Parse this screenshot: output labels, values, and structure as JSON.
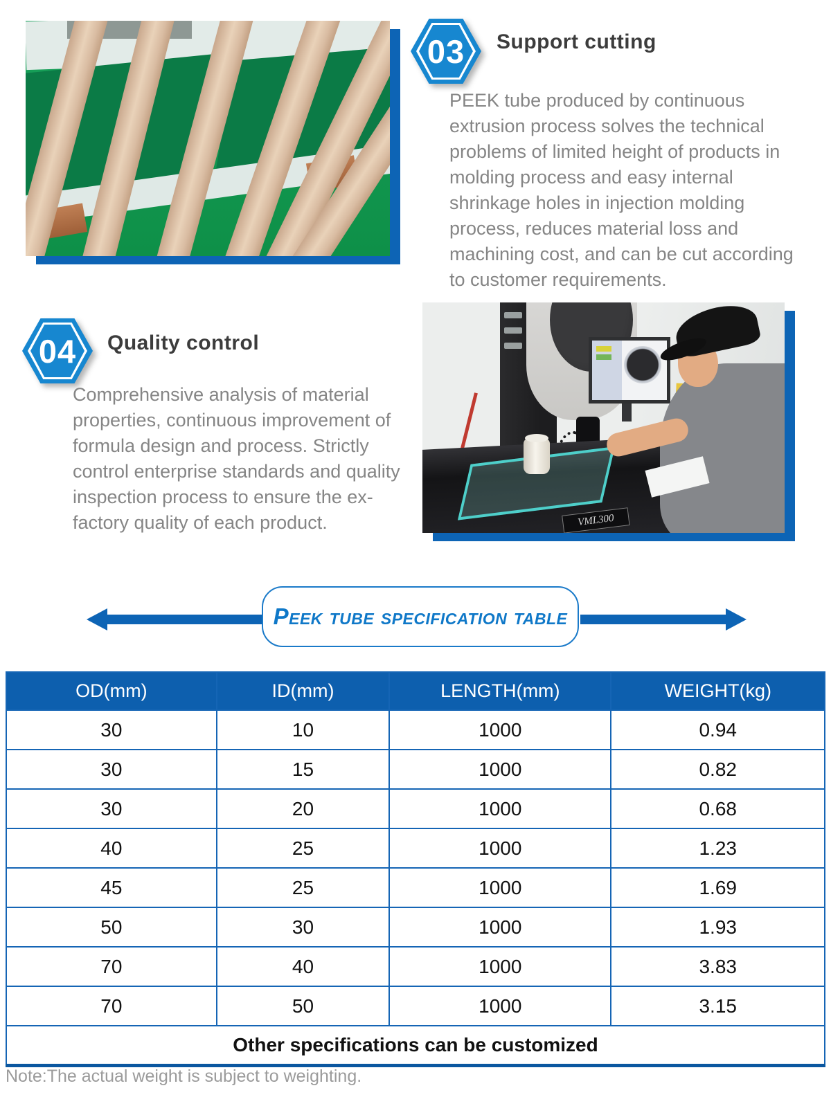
{
  "steps": [
    {
      "number": "03",
      "title": "Support cutting",
      "body": "PEEK tube produced by continuous extrusion process solves the technical problems of limited height of products in molding process and easy internal shrinkage holes in injection molding process, reduces material loss and machining cost, and can be cut according to customer requirements."
    },
    {
      "number": "04",
      "title": "Quality control",
      "body": "Comprehensive analysis of material properties, continuous improvement of formula design and process. Strictly control enterprise standards and quality inspection process to ensure the ex-factory quality of each product."
    }
  ],
  "banner": {
    "title": "Peek tube specification table"
  },
  "photos": {
    "machine_label": "VML300"
  },
  "table": {
    "columns": [
      "OD(mm)",
      "ID(mm)",
      "LENGTH(mm)",
      "WEIGHT(kg)"
    ],
    "rows": [
      [
        "30",
        "10",
        "1000",
        "0.94"
      ],
      [
        "30",
        "15",
        "1000",
        "0.82"
      ],
      [
        "30",
        "20",
        "1000",
        "0.68"
      ],
      [
        "40",
        "25",
        "1000",
        "1.23"
      ],
      [
        "45",
        "25",
        "1000",
        "1.69"
      ],
      [
        "50",
        "30",
        "1000",
        "1.93"
      ],
      [
        "70",
        "40",
        "1000",
        "3.83"
      ],
      [
        "70",
        "50",
        "1000",
        "3.15"
      ]
    ],
    "footer": "Other specifications can be customized"
  },
  "note": "Note:The actual weight is subject to weighting.",
  "colors": {
    "accent": "#0d64b5",
    "hexagon": "#1787d0",
    "table_header_bg": "#0d5fae",
    "body_text": "#858585"
  }
}
